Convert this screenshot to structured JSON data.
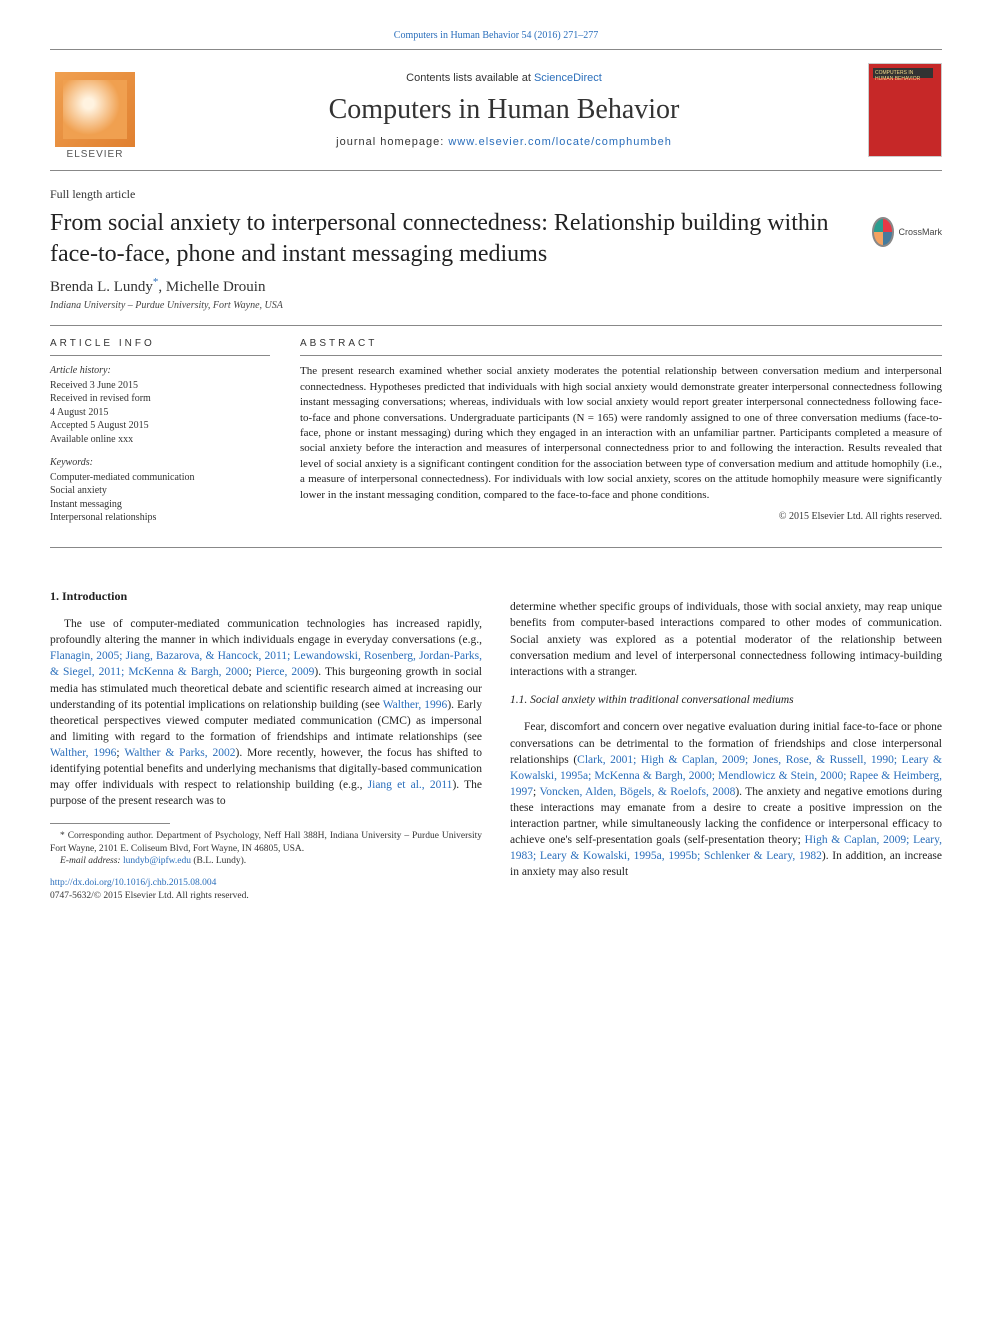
{
  "header": {
    "citation_line": "Computers in Human Behavior 54 (2016) 271–277",
    "contents_prefix": "Contents lists available at ",
    "contents_link": "ScienceDirect",
    "journal_name": "Computers in Human Behavior",
    "homepage_prefix": "journal homepage: ",
    "homepage_link": "www.elsevier.com/locate/comphumbeh",
    "elsevier": "ELSEVIER"
  },
  "article": {
    "type": "Full length article",
    "title": "From social anxiety to interpersonal connectedness: Relationship building within face-to-face, phone and instant messaging mediums",
    "crossmark": "CrossMark",
    "authors": "Brenda L. Lundy",
    "author_asterisk": "*",
    "author2": ", Michelle Drouin",
    "affiliation": "Indiana University – Purdue University, Fort Wayne, USA"
  },
  "info": {
    "heading": "ARTICLE INFO",
    "history_label": "Article history:",
    "history_text": "Received 3 June 2015\nReceived in revised form\n4 August 2015\nAccepted 5 August 2015\nAvailable online xxx",
    "keywords_label": "Keywords:",
    "keywords_text": "Computer-mediated communication\nSocial anxiety\nInstant messaging\nInterpersonal relationships"
  },
  "abstract": {
    "heading": "ABSTRACT",
    "text": "The present research examined whether social anxiety moderates the potential relationship between conversation medium and interpersonal connectedness. Hypotheses predicted that individuals with high social anxiety would demonstrate greater interpersonal connectedness following instant messaging conversations; whereas, individuals with low social anxiety would report greater interpersonal connectedness following face-to-face and phone conversations. Undergraduate participants (N = 165) were randomly assigned to one of three conversation mediums (face-to-face, phone or instant messaging) during which they engaged in an interaction with an unfamiliar partner. Participants completed a measure of social anxiety before the interaction and measures of interpersonal connectedness prior to and following the interaction. Results revealed that level of social anxiety is a significant contingent condition for the association between type of conversation medium and attitude homophily (i.e., a measure of interpersonal connectedness). For individuals with low social anxiety, scores on the attitude homophily measure were significantly lower in the instant messaging condition, compared to the face-to-face and phone conditions.",
    "copyright": "© 2015 Elsevier Ltd. All rights reserved."
  },
  "body": {
    "intro_heading": "1. Introduction",
    "intro_p1a": "The use of computer-mediated communication technologies has increased rapidly, profoundly altering the manner in which individuals engage in everyday conversations (e.g., ",
    "intro_ref1": "Flanagin, 2005; Jiang, Bazarova, & Hancock, 2011; Lewandowski, Rosenberg, Jordan-Parks, & Siegel, 2011; McKenna & Bargh, 2000",
    "intro_p1b": "; ",
    "intro_ref1b": "Pierce, 2009",
    "intro_p1c": "). This burgeoning growth in social media has stimulated much theoretical debate and scientific research aimed at increasing our understanding of its potential implications on relationship building (see ",
    "intro_ref2": "Walther, 1996",
    "intro_p1d": "). Early theoretical perspectives viewed computer mediated communication (CMC) as impersonal and limiting with regard to the formation of friendships and intimate relationships (see ",
    "intro_ref3": "Walther, 1996",
    "intro_p1e": "; ",
    "intro_ref3b": "Walther & Parks, 2002",
    "intro_p1f": "). More recently, however, the focus has shifted to identifying potential benefits and underlying mechanisms that digitally-based communication may offer individuals with respect to relationship building (e.g., ",
    "intro_ref4": "Jiang et al., 2011",
    "intro_p1g": "). The purpose of the present research was to",
    "col2_p1": "determine whether specific groups of individuals, those with social anxiety, may reap unique benefits from computer-based interactions compared to other modes of communication. Social anxiety was explored as a potential moderator of the relationship between conversation medium and level of interpersonal connectedness following intimacy-building interactions with a stranger.",
    "sub_heading": "1.1. Social anxiety within traditional conversational mediums",
    "sub_p1a": "Fear, discomfort and concern over negative evaluation during initial face-to-face or phone conversations can be detrimental to the formation of friendships and close interpersonal relationships (",
    "sub_ref1": "Clark, 2001; High & Caplan, 2009; Jones, Rose, & Russell, 1990; Leary & Kowalski, 1995a; McKenna & Bargh, 2000; Mendlowicz & Stein, 2000; Rapee & Heimberg, 1997",
    "sub_p1a2": "; ",
    "sub_ref1b": "Voncken, Alden, Bögels, & Roelofs, 2008",
    "sub_p1b": "). The anxiety and negative emotions during these interactions may emanate from a desire to create a positive impression on the interaction partner, while simultaneously lacking the confidence or interpersonal efficacy to achieve one's self-presentation goals (self-presentation theory; ",
    "sub_ref2": "High & Caplan, 2009; Leary, 1983; Leary & Kowalski, 1995a, 1995b; Schlenker & Leary, 1982",
    "sub_p1c": "). In addition, an increase in anxiety may also result"
  },
  "footnote": {
    "corr": "* Corresponding author. Department of Psychology, Neff Hall 388H, Indiana University – Purdue University Fort Wayne, 2101 E. Coliseum Blvd, Fort Wayne, IN 46805, USA.",
    "email_label": "E-mail address: ",
    "email": "lundyb@ipfw.edu",
    "email_suffix": " (B.L. Lundy).",
    "doi": "http://dx.doi.org/10.1016/j.chb.2015.08.004",
    "issn_copy": "0747-5632/© 2015 Elsevier Ltd. All rights reserved."
  },
  "colors": {
    "link": "#2a6ebb",
    "journal_red": "#c62828"
  }
}
